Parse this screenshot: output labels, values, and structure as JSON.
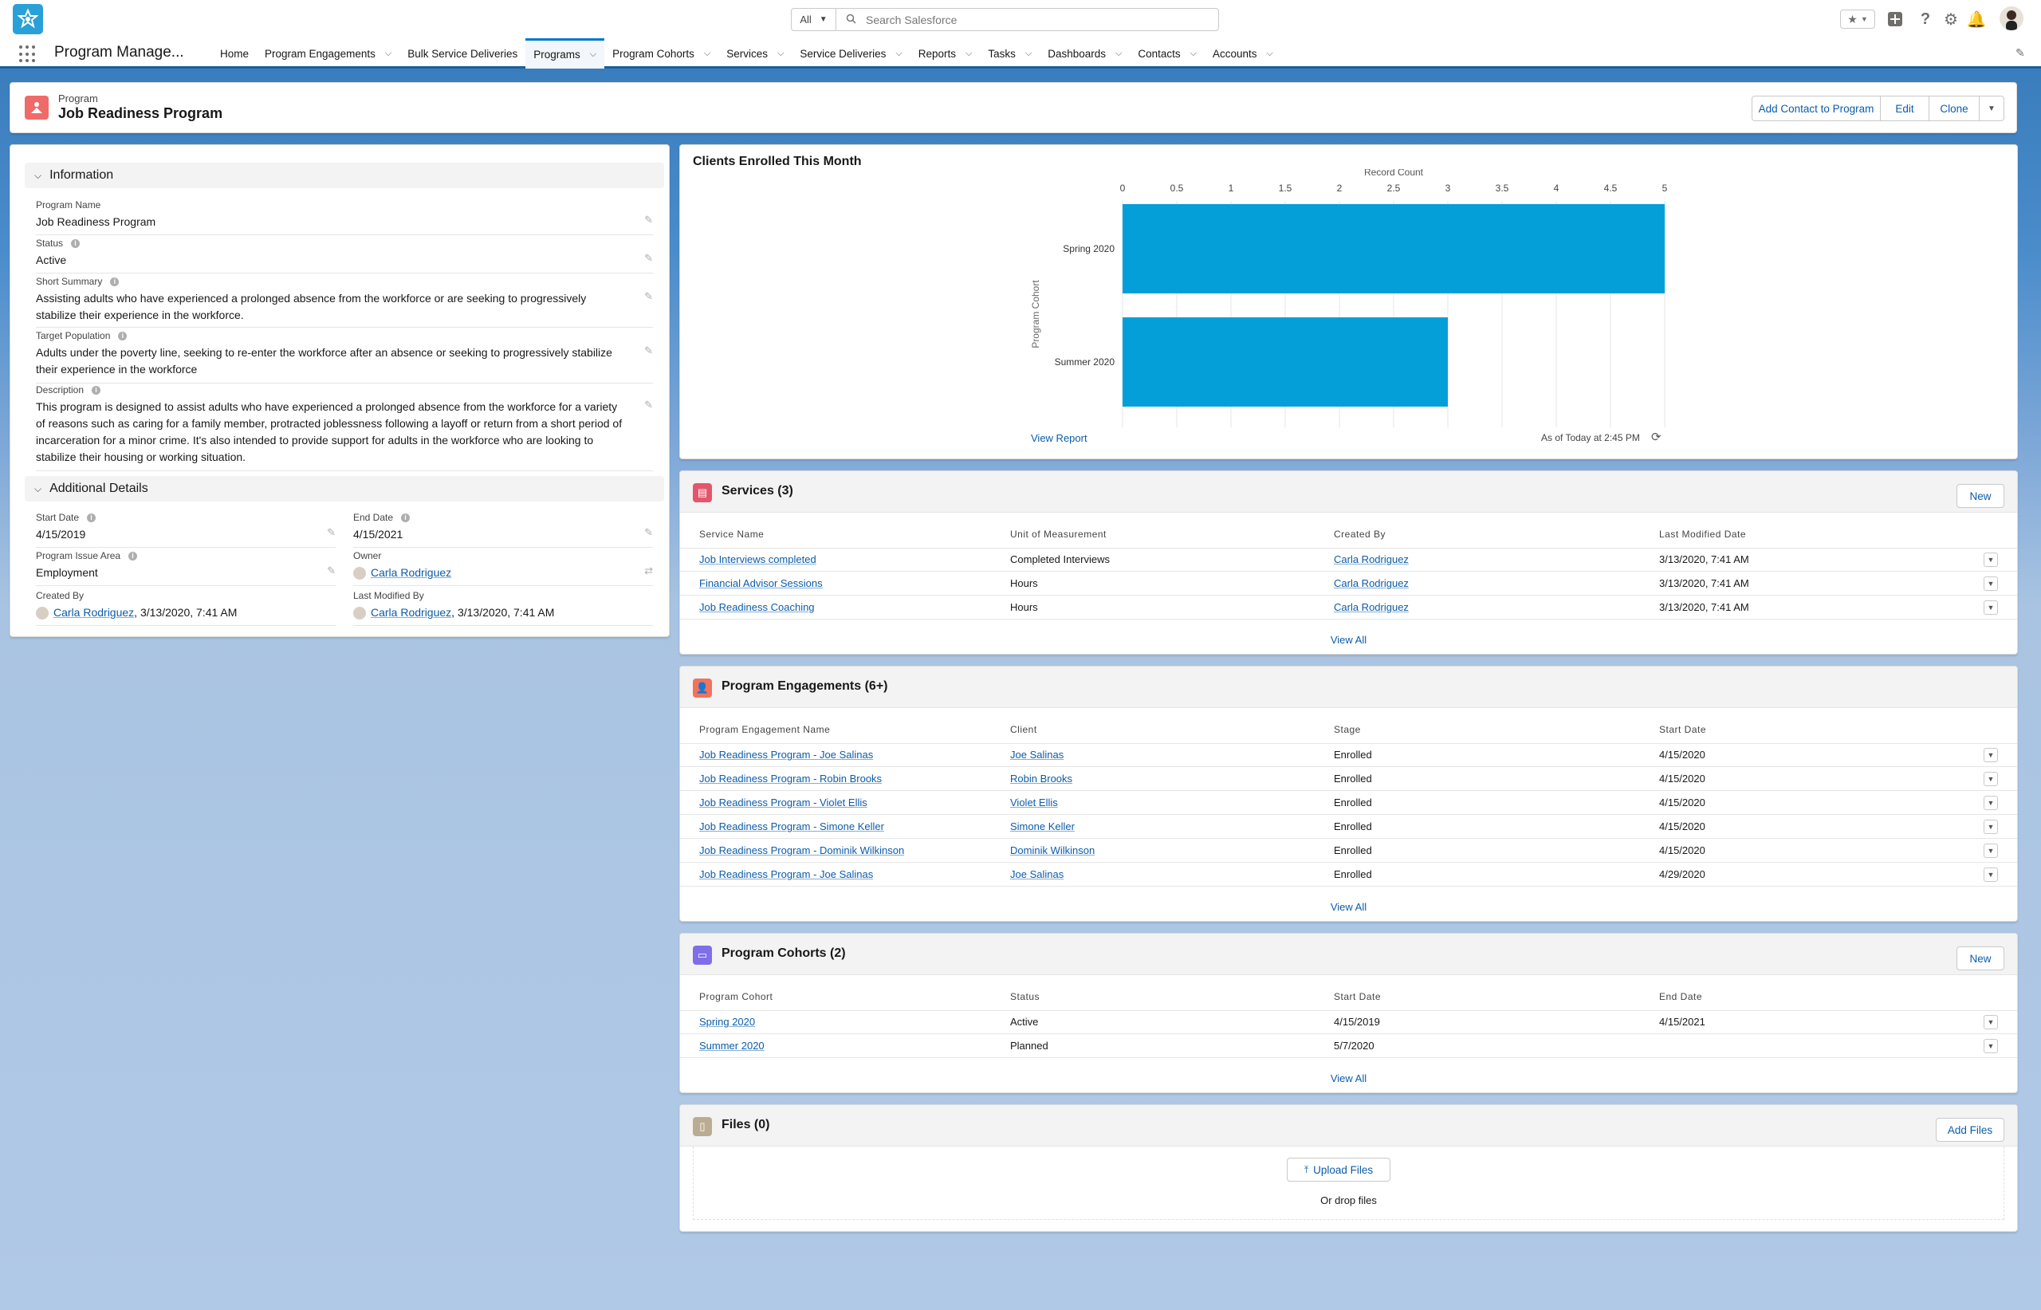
{
  "header": {
    "search_scope": "All",
    "search_placeholder": "Search Salesforce"
  },
  "nav": {
    "app_name": "Program Manage...",
    "items": [
      {
        "label": "Home",
        "chevron": false
      },
      {
        "label": "Program Engagements",
        "chevron": true
      },
      {
        "label": "Bulk Service Deliveries",
        "chevron": false
      },
      {
        "label": "Programs",
        "chevron": true,
        "active": true
      },
      {
        "label": "Program Cohorts",
        "chevron": true
      },
      {
        "label": "Services",
        "chevron": true
      },
      {
        "label": "Service Deliveries",
        "chevron": true
      },
      {
        "label": "Reports",
        "chevron": true
      },
      {
        "label": "Tasks",
        "chevron": true
      },
      {
        "label": "Dashboards",
        "chevron": true
      },
      {
        "label": "Contacts",
        "chevron": true
      },
      {
        "label": "Accounts",
        "chevron": true
      }
    ]
  },
  "record": {
    "object_label": "Program",
    "title": "Job Readiness Program",
    "actions": {
      "add_contact": "Add Contact to Program",
      "edit": "Edit",
      "clone": "Clone"
    }
  },
  "info": {
    "section_title": "Information",
    "program_name": {
      "label": "Program Name",
      "value": "Job Readiness Program"
    },
    "status": {
      "label": "Status",
      "value": "Active"
    },
    "short_summary": {
      "label": "Short Summary",
      "value": "Assisting adults who have experienced a prolonged absence from the workforce or are seeking to progressively stabilize their experience in the workforce."
    },
    "target_population": {
      "label": "Target Population",
      "value": "Adults under the poverty line, seeking to re-enter the workforce after an absence or seeking to progressively stabilize their experience in the workforce"
    },
    "description": {
      "label": "Description",
      "value": "This program is designed to assist adults who have experienced a prolonged absence from the workforce for a variety of reasons such as caring for a family member, protracted joblessness following a layoff or return from a short period of incarceration for a minor crime. It's also intended to provide support for adults in the workforce who are looking to stabilize their housing or working situation."
    }
  },
  "additional": {
    "section_title": "Additional Details",
    "start_date": {
      "label": "Start Date",
      "value": "4/15/2019"
    },
    "end_date": {
      "label": "End Date",
      "value": "4/15/2021"
    },
    "issue_area": {
      "label": "Program Issue Area",
      "value": "Employment"
    },
    "owner": {
      "label": "Owner",
      "value": "Carla Rodriguez"
    },
    "created_by": {
      "label": "Created By",
      "user": "Carla Rodriguez",
      "date": ", 3/13/2020, 7:41 AM"
    },
    "modified_by": {
      "label": "Last Modified By",
      "user": "Carla Rodriguez",
      "date": ", 3/13/2020, 7:41 AM"
    }
  },
  "chart_card": {
    "title": "Clients Enrolled This Month",
    "view_report": "View Report",
    "as_of": "As of Today at 2:45 PM"
  },
  "chart_data": {
    "type": "bar",
    "orientation": "horizontal",
    "title": "Clients Enrolled This Month",
    "xlabel": "Record Count",
    "ylabel": "Program Cohort",
    "categories": [
      "Spring 2020",
      "Summer 2020"
    ],
    "values": [
      5,
      3
    ],
    "xlim": [
      0,
      5
    ],
    "ticks": [
      "0",
      "0.5",
      "1",
      "1.5",
      "2",
      "2.5",
      "3",
      "3.5",
      "4",
      "4.5",
      "5"
    ],
    "color": "#049fd9",
    "grid": true
  },
  "services": {
    "title": "Services (3)",
    "new": "New",
    "cols": [
      "Service Name",
      "Unit of Measurement",
      "Created By",
      "Last Modified Date"
    ],
    "rows": [
      [
        "Job Interviews completed",
        "Completed Interviews",
        "Carla Rodriguez",
        "3/13/2020, 7:41 AM"
      ],
      [
        "Financial Advisor Sessions",
        "Hours",
        "Carla Rodriguez",
        "3/13/2020, 7:41 AM"
      ],
      [
        "Job Readiness Coaching",
        "Hours",
        "Carla Rodriguez",
        "3/13/2020, 7:41 AM"
      ]
    ],
    "view_all": "View All"
  },
  "engagements": {
    "title": "Program Engagements (6+)",
    "cols": [
      "Program Engagement Name",
      "Client",
      "Stage",
      "Start Date"
    ],
    "rows": [
      [
        "Job Readiness Program - Joe Salinas",
        "Joe Salinas",
        "Enrolled",
        "4/15/2020"
      ],
      [
        "Job Readiness Program - Robin Brooks",
        "Robin Brooks",
        "Enrolled",
        "4/15/2020"
      ],
      [
        "Job Readiness Program - Violet Ellis",
        "Violet Ellis",
        "Enrolled",
        "4/15/2020"
      ],
      [
        "Job Readiness Program - Simone Keller",
        "Simone Keller",
        "Enrolled",
        "4/15/2020"
      ],
      [
        "Job Readiness Program - Dominik Wilkinson",
        "Dominik Wilkinson",
        "Enrolled",
        "4/15/2020"
      ],
      [
        "Job Readiness Program - Joe Salinas",
        "Joe Salinas",
        "Enrolled",
        "4/29/2020"
      ]
    ],
    "view_all": "View All"
  },
  "cohorts": {
    "title": "Program Cohorts (2)",
    "new": "New",
    "cols": [
      "Program Cohort",
      "Status",
      "Start Date",
      "End Date"
    ],
    "rows": [
      [
        "Spring 2020",
        "Active",
        "4/15/2019",
        "4/15/2021"
      ],
      [
        "Summer 2020",
        "Planned",
        "5/7/2020",
        ""
      ]
    ],
    "view_all": "View All"
  },
  "files": {
    "title": "Files (0)",
    "add": "Add Files",
    "upload": "Upload Files",
    "drop": "Or drop files"
  },
  "colors": {
    "brand": "#0176d3",
    "program_icon": "#f06a6a",
    "services_icon": "#e3566c",
    "engagements_icon": "#f0735d",
    "cohorts_icon": "#7f6ee8",
    "files_icon": "#baac93",
    "bar": "#049fd9"
  }
}
